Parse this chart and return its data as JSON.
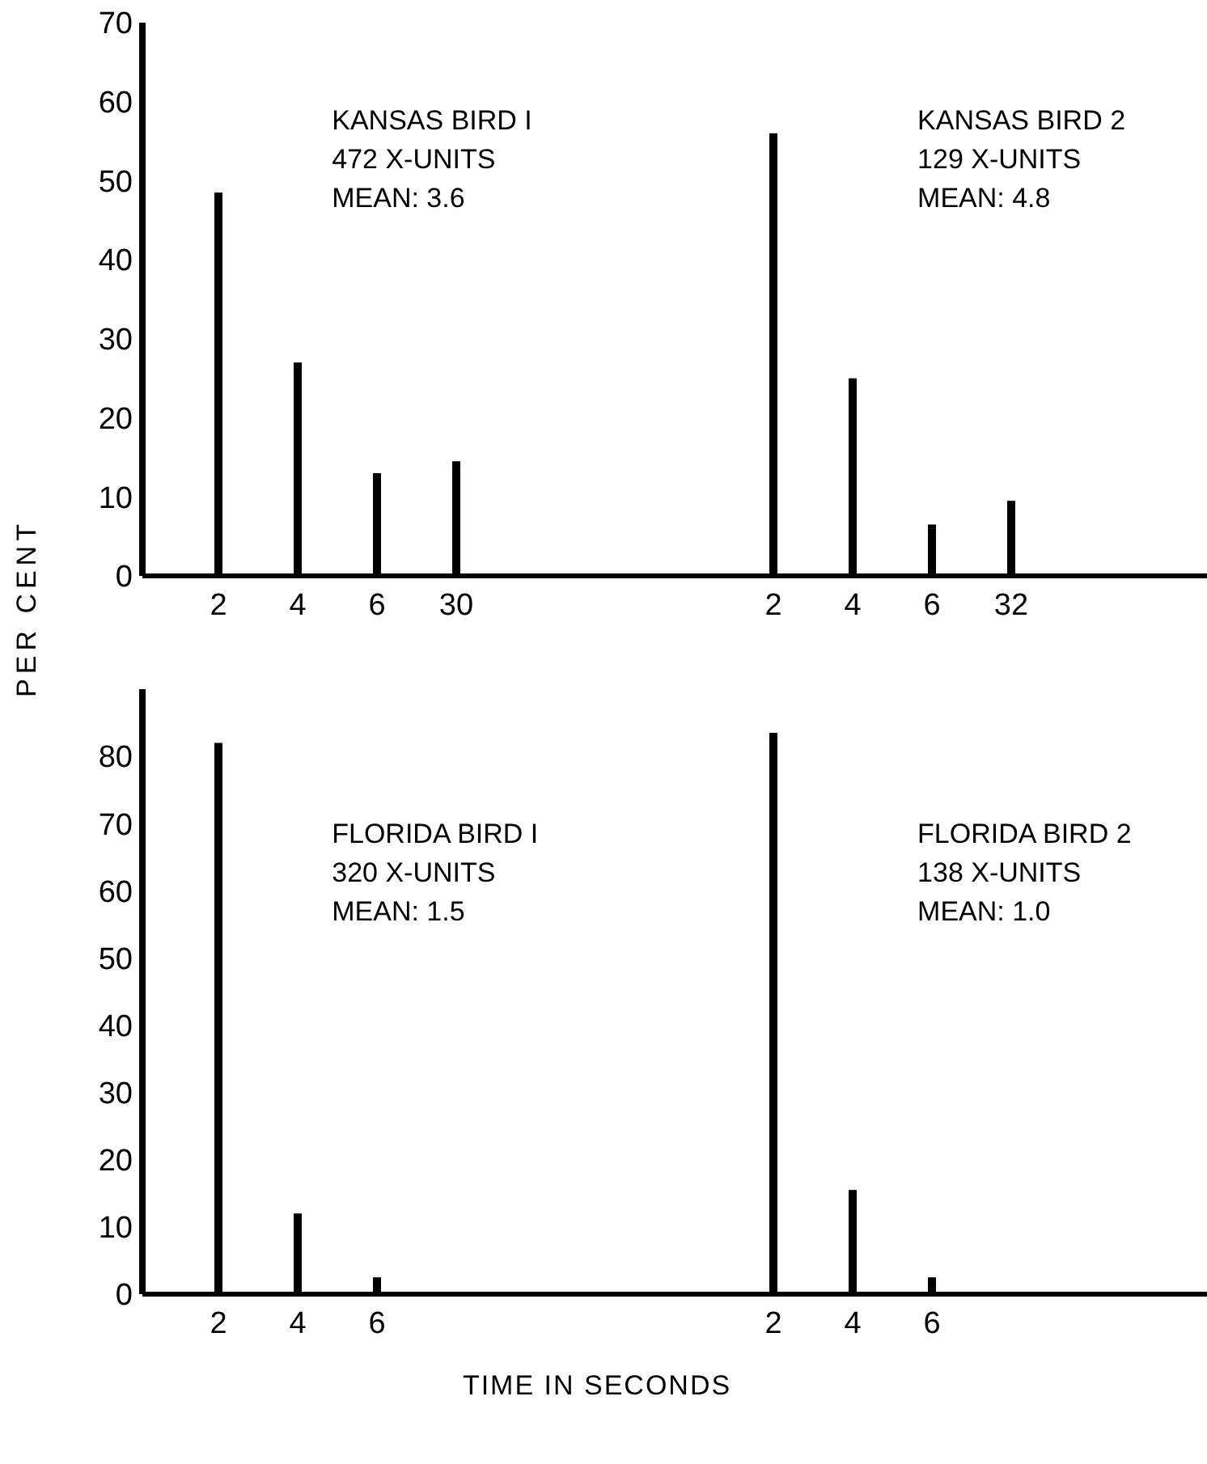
{
  "chart_data": [
    {
      "type": "bar",
      "categories": [
        "2",
        "4",
        "6",
        "30",
        null,
        null,
        null,
        "2",
        "4",
        "6",
        "32",
        null,
        null
      ],
      "values": [
        48.5,
        27,
        13,
        14.5,
        null,
        null,
        null,
        56,
        25,
        6.5,
        9.5,
        null,
        null
      ],
      "color": "#000000",
      "ylim": [
        0,
        70
      ],
      "yticks": [
        0,
        10,
        20,
        30,
        40,
        50,
        60,
        70
      ],
      "ylabel": "PER CENT",
      "annotations": [
        "KANSAS BIRD I\n472 X-UNITS\nMEAN: 3.6",
        "KANSAS BIRD 2\n129 X-UNITS\nMEAN: 4.8"
      ]
    },
    {
      "type": "bar",
      "categories": [
        "2",
        "4",
        "6",
        null,
        null,
        null,
        null,
        "2",
        "4",
        "6",
        null,
        null,
        null
      ],
      "values": [
        82,
        12,
        2.5,
        null,
        null,
        null,
        null,
        83.5,
        15.5,
        2.5,
        null,
        null,
        null
      ],
      "color": "#000000",
      "ylim": [
        0,
        90
      ],
      "yticks": [
        0,
        10,
        20,
        30,
        40,
        50,
        60,
        70,
        80
      ],
      "xlabel": "TIME IN SECONDS",
      "annotations": [
        "FLORIDA BIRD I\n320 X-UNITS\nMEAN: 1.5",
        "FLORIDA BIRD 2\n138 X-UNITS\nMEAN: 1.0"
      ]
    }
  ]
}
